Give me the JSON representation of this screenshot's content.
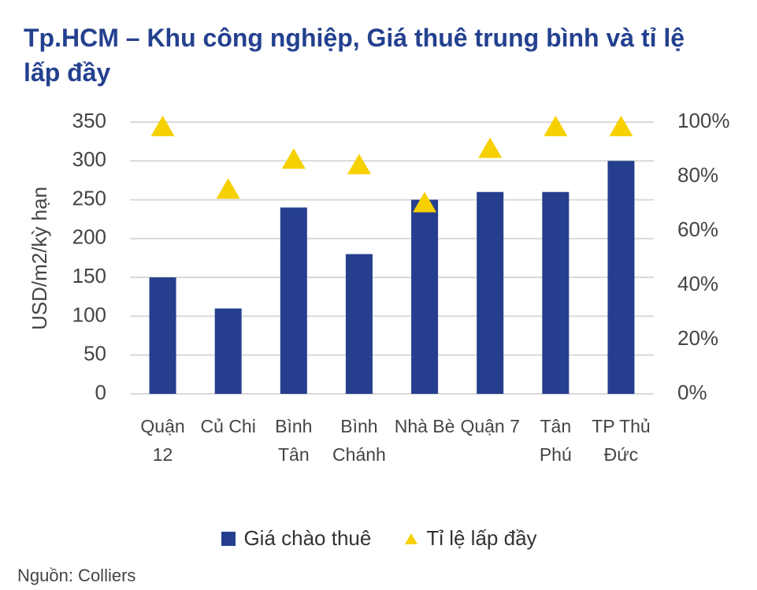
{
  "chart_data": {
    "type": "bar-triangle",
    "title": "Tp.HCM – Khu công nghiệp, Giá thuê trung bình và tỉ lệ lấp đầy",
    "y_label": "USD/m2/kỳ hạn",
    "source": "Nguồn: Colliers",
    "categories": [
      "Quận 12",
      "Củ Chi",
      "Bình Tân",
      "Bình Chánh",
      "Nhà Bè",
      "Quận 7",
      "Tân Phú",
      "TP Thủ Đức"
    ],
    "series": [
      {
        "name": "Giá chào thuê",
        "color": "#253f8e",
        "values": [
          150,
          110,
          240,
          180,
          250,
          260,
          260,
          300
        ]
      },
      {
        "name": "Tỉ lệ lấp đầy",
        "color": "#f7d000",
        "axis": "y2",
        "values": [
          98,
          75,
          86,
          84,
          70,
          90,
          98,
          98
        ]
      }
    ],
    "ylim": [
      0,
      350
    ],
    "yticks": [
      0,
      50,
      100,
      150,
      200,
      250,
      300,
      350
    ],
    "y2lim": [
      0,
      100
    ],
    "y2ticks": [
      {
        "value": 0,
        "label": "0%"
      },
      {
        "value": 20,
        "label": "20%"
      },
      {
        "value": 40,
        "label": "40%"
      },
      {
        "value": 60,
        "label": "60%"
      },
      {
        "value": 80,
        "label": "80%"
      },
      {
        "value": 100,
        "label": "100%"
      }
    ],
    "grid": true
  }
}
